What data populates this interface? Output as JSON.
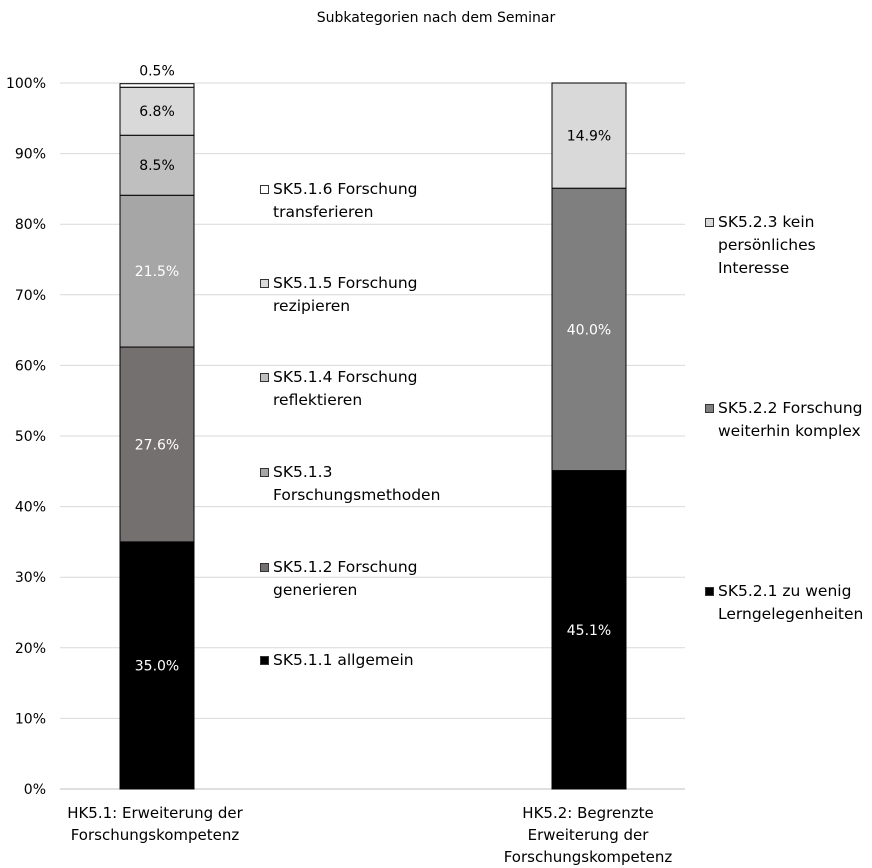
{
  "chart_data": {
    "type": "bar",
    "stacked": true,
    "title": "Subkategorien nach dem Seminar",
    "ylim": [
      0,
      100
    ],
    "yticks": [
      "0%",
      "10%",
      "20%",
      "30%",
      "40%",
      "50%",
      "60%",
      "70%",
      "80%",
      "90%",
      "100%"
    ],
    "grid": true,
    "bars": [
      {
        "category": "HK5.1: Erweiterung der\nForschungskompetenz",
        "segments": [
          {
            "name": "SK5.1.1 allgemein",
            "value": 35.0,
            "label": "35.0%",
            "color": "#000000",
            "text_color": "#ffffff"
          },
          {
            "name": "SK5.1.2 Forschung\ngenerieren",
            "value": 27.6,
            "label": "27.6%",
            "color": "#757070",
            "text_color": "#ffffff"
          },
          {
            "name": "SK5.1.3\nForschungsmethoden",
            "value": 21.5,
            "label": "21.5%",
            "color": "#a6a6a6",
            "text_color": "#ffffff"
          },
          {
            "name": "SK5.1.4 Forschung\nreflektieren",
            "value": 8.5,
            "label": "8.5%",
            "color": "#bfbfbf",
            "text_color": "#000000"
          },
          {
            "name": "SK5.1.5 Forschung\nrezipieren",
            "value": 6.8,
            "label": "6.8%",
            "color": "#d9d9d9",
            "text_color": "#000000"
          },
          {
            "name": "SK5.1.6 Forschung\ntransferieren",
            "value": 0.5,
            "label": "0.5%",
            "color": "#ffffff",
            "text_color": "#000000"
          }
        ]
      },
      {
        "category": "HK5.2: Begrenzte\nErweiterung der\nForschungskompetenz",
        "segments": [
          {
            "name": "SK5.2.1 zu wenig\nLerngelegenheiten",
            "value": 45.1,
            "label": "45.1%",
            "color": "#000000",
            "text_color": "#ffffff"
          },
          {
            "name": "SK5.2.2 Forschung\nweiterhin komplex",
            "value": 40.0,
            "label": "40.0%",
            "color": "#7f7f7f",
            "text_color": "#ffffff"
          },
          {
            "name": "SK5.2.3 kein\npersönliches\nInteresse",
            "value": 14.9,
            "label": "14.9%",
            "color": "#d9d9d9",
            "text_color": "#000000"
          }
        ]
      }
    ]
  }
}
